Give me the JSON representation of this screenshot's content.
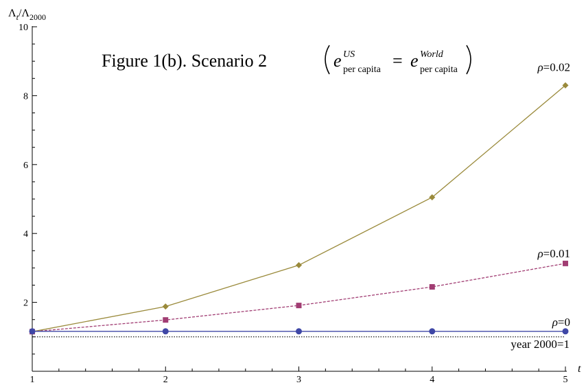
{
  "chart_data": {
    "type": "line",
    "title_main": "Figure 1(b). Scenario 2",
    "title_formula": {
      "lhs_base": "e",
      "lhs_sup": "US",
      "lhs_sub": "per capita",
      "equals": "=",
      "rhs_base": "e",
      "rhs_sup": "World",
      "rhs_sub": "per capita"
    },
    "ylabel": "Λt/Λ2000",
    "ylabel_parts": {
      "a": "Λ",
      "a_sub": "t",
      "slash": "/",
      "b": "Λ",
      "b_sub": "2000"
    },
    "xlabel": "t",
    "x": [
      1,
      2,
      3,
      4,
      5
    ],
    "xlim": [
      1,
      5
    ],
    "ylim": [
      0,
      10
    ],
    "xticks": [
      1,
      2,
      3,
      4,
      5
    ],
    "yticks": [
      2,
      4,
      6,
      8,
      10
    ],
    "grid": false,
    "series": [
      {
        "name": "ρ=0.02",
        "label_rho": "ρ",
        "label_value": "=0.02",
        "values": [
          1.15,
          1.88,
          3.08,
          5.05,
          8.3
        ],
        "color": "#9a8a3b",
        "dash": "solid",
        "marker": "diamond"
      },
      {
        "name": "ρ=0.01",
        "label_rho": "ρ",
        "label_value": "=0.01",
        "values": [
          1.15,
          1.49,
          1.91,
          2.45,
          3.13
        ],
        "color": "#a13d73",
        "dash": "dashed",
        "marker": "square"
      },
      {
        "name": "ρ=0",
        "label_rho": "ρ",
        "label_value": "=0",
        "values": [
          1.16,
          1.16,
          1.16,
          1.16,
          1.16
        ],
        "color": "#3f47a6",
        "dash": "solid",
        "marker": "circle"
      }
    ],
    "reference_line": {
      "name": "year 2000=1",
      "value": 1,
      "dash": "dotted",
      "color": "#000000"
    }
  }
}
